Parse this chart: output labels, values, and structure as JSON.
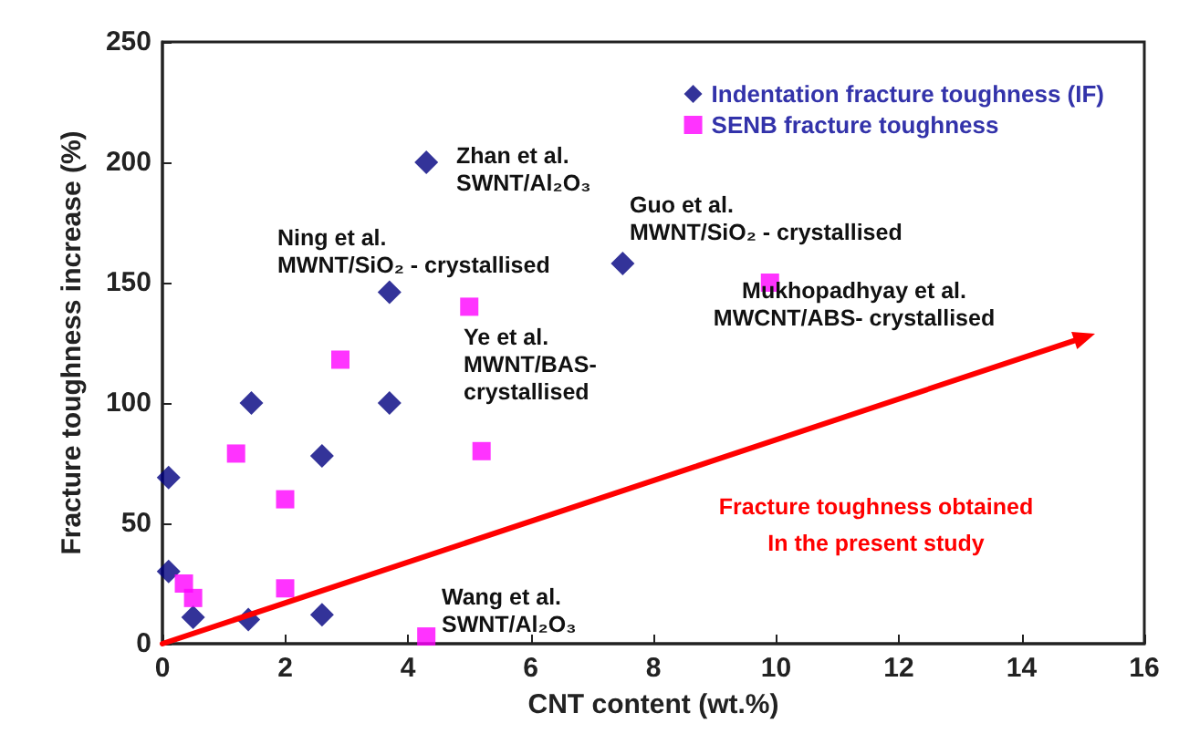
{
  "chart_data": {
    "type": "scatter",
    "xlabel": "CNT content (wt.%)",
    "ylabel": "Fracture toughness increase (%)",
    "xlim": [
      0,
      16
    ],
    "xticks": [
      0,
      2,
      4,
      6,
      8,
      10,
      12,
      14,
      16
    ],
    "ylim": [
      0,
      250
    ],
    "yticks": [
      0,
      50,
      100,
      150,
      200,
      250
    ],
    "legend": "top right",
    "grid": false,
    "series": [
      {
        "name": "Indentation fracture toughness (IF)",
        "color": "#000080",
        "marker": "diamond",
        "x": [
          0.1,
          0.1,
          0.5,
          1.4,
          1.45,
          2.6,
          2.6,
          3.7,
          3.7,
          4.3,
          7.5
        ],
        "values": [
          69,
          30,
          11,
          10,
          100,
          78,
          12,
          146,
          100,
          200,
          158
        ]
      },
      {
        "name": "SENB fracture toughness",
        "color": "#ff00ff",
        "marker": "square",
        "x": [
          0.35,
          0.5,
          1.2,
          2.0,
          2.0,
          2.9,
          4.3,
          5.0,
          5.2,
          9.9
        ],
        "values": [
          25,
          19,
          79,
          60,
          23,
          118,
          3,
          140,
          80,
          150
        ]
      }
    ],
    "annotations": [
      "Zhan et al.\nSWNT/Al₂O₃",
      "Ning et al.\nMWNT/SiO₂ - crystallised",
      "Guo et al.\nMWNT/SiO₂ - crystallised",
      "Ye et al.\nMWNT/BAS-\ncrystallised",
      "Mukhopadhyay et al.\nMWCNT/ABS- crystallised",
      "Wang et al.\nSWNT/Al₂O₃",
      "Fracture toughness obtained\nIn the present study"
    ]
  }
}
